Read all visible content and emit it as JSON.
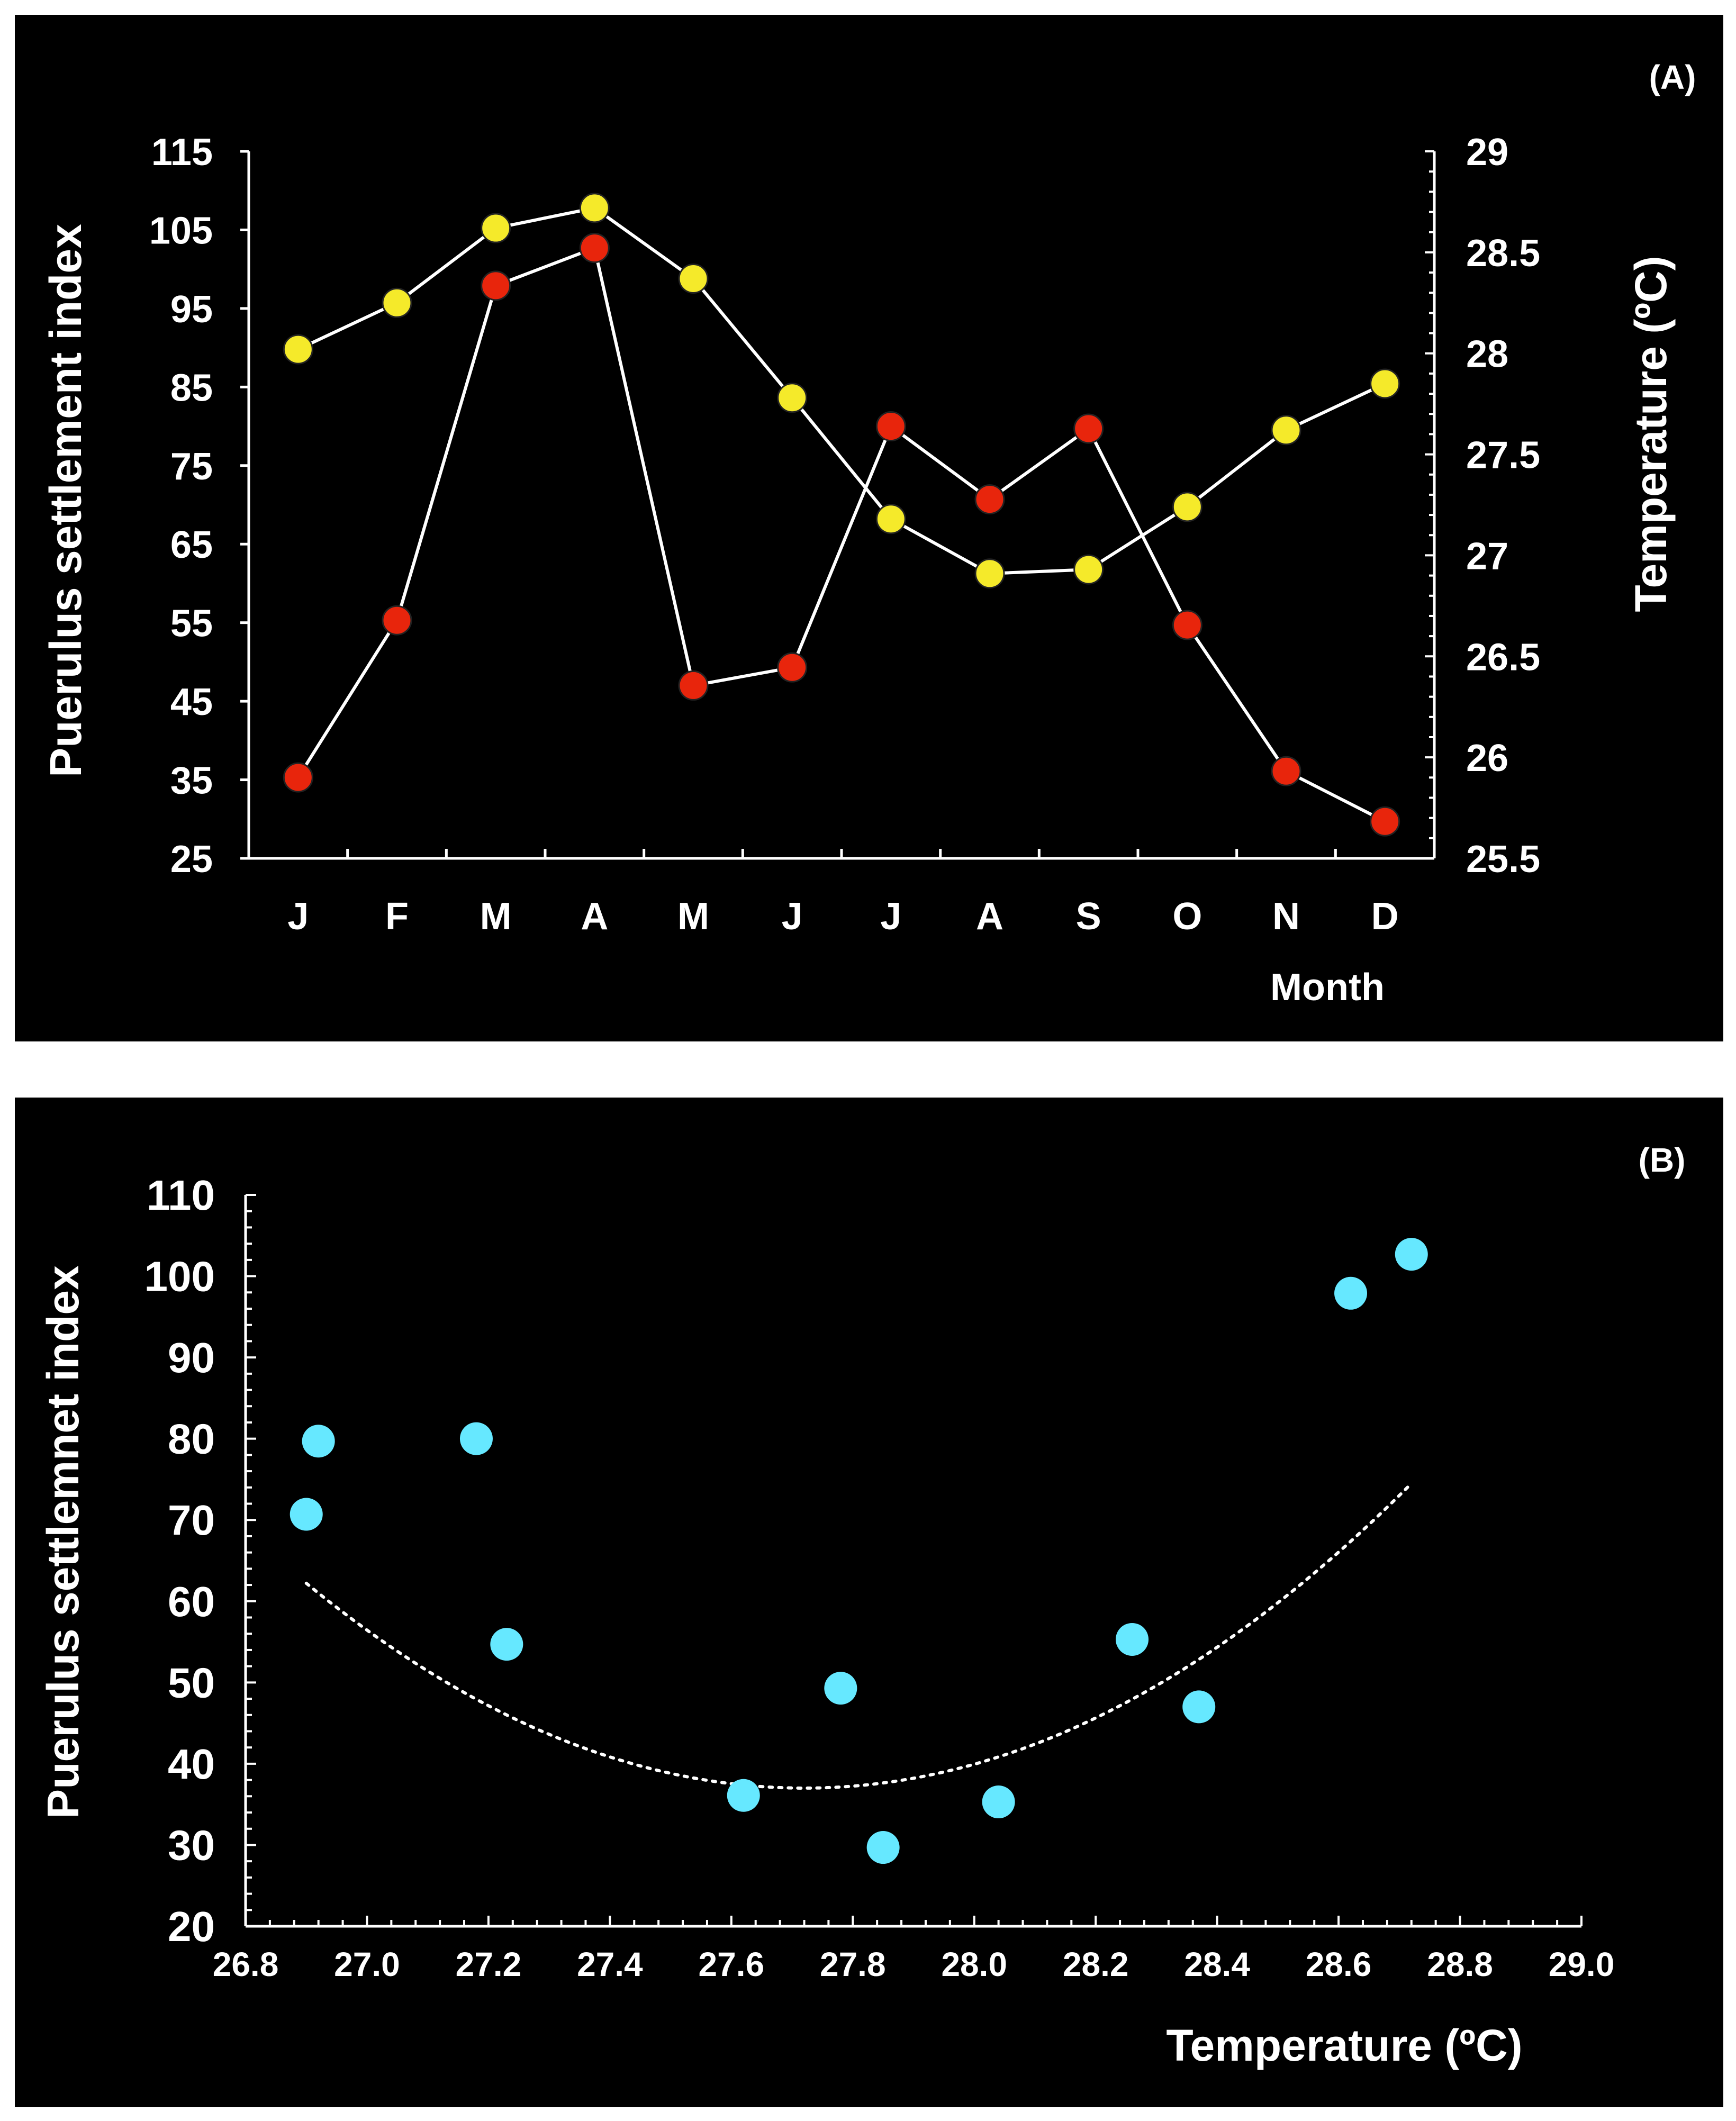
{
  "colors": {
    "background": "#000000",
    "settlement_marker": "#e8250c",
    "temperature_marker": "#f5ea2a",
    "scatter_marker": "#66e8ff",
    "line": "#ffffff",
    "trend_line": "#ffffff"
  },
  "chart_data": [
    {
      "type": "line",
      "panel_label": "(A)",
      "title": "",
      "xlabel": "Month",
      "ylabel": "Puerulus settlement index",
      "ylabel_right": "Temperature (ºC)",
      "categories": [
        "J",
        "F",
        "M",
        "A",
        "M",
        "J",
        "J",
        "A",
        "S",
        "O",
        "N",
        "D"
      ],
      "ylim": [
        25,
        115
      ],
      "y_ticks": [
        "25",
        "35",
        "45",
        "55",
        "65",
        "75",
        "85",
        "95",
        "105",
        "115"
      ],
      "y2lim": [
        25.5,
        29
      ],
      "y2_ticks": [
        "25.5",
        "26",
        "26.5",
        "27",
        "27.5",
        "28",
        "28.5",
        "29"
      ],
      "series": [
        {
          "name": "Puerulus settlement index",
          "axis": "left",
          "marker_color": "#e8250c",
          "values": [
            35.3,
            55.3,
            97.9,
            102.7,
            47.0,
            49.3,
            80.0,
            70.7,
            79.7,
            54.7,
            36.1,
            29.7
          ]
        },
        {
          "name": "Temperature",
          "axis": "right",
          "marker_color": "#f5ea2a",
          "values": [
            28.02,
            28.25,
            28.62,
            28.72,
            28.37,
            27.78,
            27.18,
            26.91,
            26.93,
            27.24,
            27.62,
            27.85
          ]
        }
      ]
    },
    {
      "type": "scatter",
      "panel_label": "(B)",
      "title": "",
      "xlabel": "Temperature (ºC)",
      "ylabel": "Puerulus settlemnet index",
      "xlim": [
        26.8,
        29.0
      ],
      "ylim": [
        20,
        110
      ],
      "x_ticks": [
        "26.8",
        "27.0",
        "27.2",
        "27.4",
        "27.6",
        "27.8",
        "28.0",
        "28.2",
        "28.4",
        "28.6",
        "28.8",
        "29.0"
      ],
      "y_ticks": [
        "20",
        "30",
        "40",
        "50",
        "60",
        "70",
        "80",
        "90",
        "100",
        "110"
      ],
      "points": [
        {
          "x": 26.9,
          "y": 70.7
        },
        {
          "x": 26.92,
          "y": 79.7
        },
        {
          "x": 27.18,
          "y": 80.0
        },
        {
          "x": 27.23,
          "y": 54.7
        },
        {
          "x": 27.62,
          "y": 36.1
        },
        {
          "x": 27.78,
          "y": 49.3
        },
        {
          "x": 27.85,
          "y": 29.7
        },
        {
          "x": 28.04,
          "y": 35.3
        },
        {
          "x": 28.26,
          "y": 55.3
        },
        {
          "x": 28.37,
          "y": 47.0
        },
        {
          "x": 28.62,
          "y": 97.9
        },
        {
          "x": 28.72,
          "y": 102.7
        }
      ],
      "trendline": {
        "type": "polynomial-2",
        "x_range": [
          26.9,
          28.72
        ],
        "vertex_x": 27.72,
        "vertex_y": 37.0,
        "coefficient_a": 37.5
      }
    }
  ]
}
